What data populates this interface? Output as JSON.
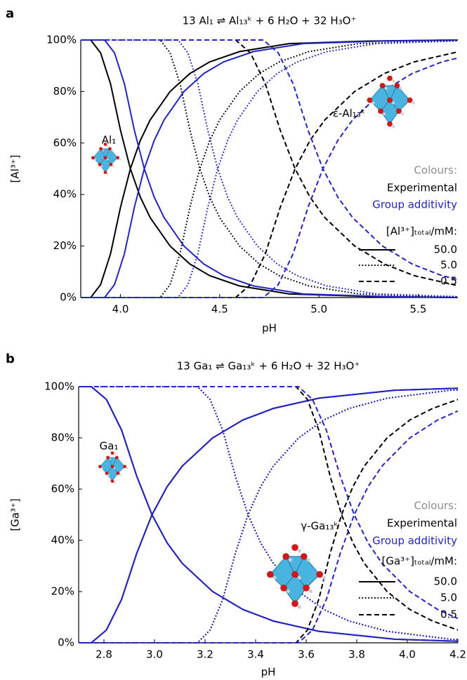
{
  "chart_data": [
    {
      "type": "line",
      "panel_label": "a",
      "title": "13 Al₁ ⇌ Al₁₃ᵏ + 6 H₂O + 32 H₃O⁺",
      "xlabel": "pH",
      "ylabel": "[Al³⁺]",
      "xlim": [
        3.8,
        5.7
      ],
      "xticks": [
        {
          "value": 4,
          "label": "4.0"
        },
        4.5,
        {
          "value": 5,
          "label": "5.0"
        },
        5.5
      ],
      "ylim": [
        0,
        100
      ],
      "yticks": [
        {
          "value": 0,
          "label": "0%"
        },
        {
          "value": 20,
          "label": "20%"
        },
        {
          "value": 40,
          "label": "40%"
        },
        {
          "value": 60,
          "label": "60%"
        },
        {
          "value": 80,
          "label": "80%"
        },
        {
          "value": 100,
          "label": "100%"
        }
      ],
      "annotations": [
        "Al₁",
        "ε-Al₁₃ᵏ"
      ],
      "legend": {
        "colours_title": "Colours:",
        "colours_title_color": "#8c8c8c",
        "colour_entries": [
          {
            "label": "Experimental",
            "color": "#000000"
          },
          {
            "label": "Group additivity",
            "color": "#2323c8"
          }
        ],
        "style_title": "[Al³⁺]ₜₒₜₐₗ/mM:",
        "style_entries": [
          {
            "label": "50.0",
            "dash": "solid"
          },
          {
            "label": "5.0",
            "dash": "dotted"
          },
          {
            "label": "0.5",
            "dash": "dashed"
          }
        ]
      },
      "series": [
        {
          "color": "#000000",
          "dash": "solid",
          "x": [
            3.8,
            3.85,
            3.9,
            3.95,
            4.0,
            4.05,
            4.1,
            4.15,
            4.25,
            4.35,
            4.45,
            4.6,
            4.85,
            5.25,
            5.7
          ],
          "values": [
            100,
            100,
            95,
            83,
            65,
            50,
            39,
            31,
            20,
            13,
            8.5,
            4.5,
            1.4,
            0.4,
            0
          ]
        },
        {
          "color": "#000000",
          "dash": "solid",
          "x": [
            3.8,
            3.85,
            3.9,
            3.95,
            4.0,
            4.05,
            4.1,
            4.15,
            4.25,
            4.35,
            4.45,
            4.6,
            4.85,
            5.25,
            5.7
          ],
          "values": [
            0,
            0,
            5,
            17,
            35,
            50,
            61,
            69,
            80,
            87,
            91.5,
            95.5,
            98.6,
            99.6,
            100
          ]
        },
        {
          "color": "#2323c8",
          "dash": "solid",
          "x": [
            3.8,
            3.92,
            3.97,
            4.02,
            4.07,
            4.12,
            4.17,
            4.22,
            4.32,
            4.42,
            4.52,
            4.67,
            4.92,
            5.32,
            5.7
          ],
          "values": [
            100,
            100,
            95,
            83,
            65,
            50,
            39,
            31,
            20,
            13,
            8.5,
            4.5,
            1.4,
            0.4,
            0
          ]
        },
        {
          "color": "#2323c8",
          "dash": "solid",
          "x": [
            3.8,
            3.92,
            3.97,
            4.02,
            4.07,
            4.12,
            4.17,
            4.22,
            4.32,
            4.42,
            4.52,
            4.67,
            4.92,
            5.32,
            5.7
          ],
          "values": [
            0,
            0,
            5,
            17,
            35,
            50,
            61,
            69,
            80,
            87,
            91.5,
            95.5,
            98.6,
            99.6,
            100
          ]
        },
        {
          "color": "#000000",
          "dash": "dotted",
          "x": [
            3.8,
            4.2,
            4.25,
            4.3,
            4.35,
            4.4,
            4.45,
            4.5,
            4.6,
            4.7,
            4.8,
            4.95,
            5.2,
            5.6,
            5.7
          ],
          "values": [
            100,
            100,
            95,
            83,
            65,
            50,
            39,
            31,
            20,
            13,
            8.5,
            4.5,
            1.4,
            0.4,
            0.3
          ]
        },
        {
          "color": "#000000",
          "dash": "dotted",
          "x": [
            3.8,
            4.2,
            4.25,
            4.3,
            4.35,
            4.4,
            4.45,
            4.5,
            4.6,
            4.7,
            4.8,
            4.95,
            5.2,
            5.6,
            5.7
          ],
          "values": [
            0,
            0,
            5,
            17,
            35,
            50,
            61,
            69,
            80,
            87,
            91.5,
            95.5,
            98.6,
            99.6,
            99.7
          ]
        },
        {
          "color": "#2323c8",
          "dash": "dotted",
          "x": [
            3.8,
            4.29,
            4.34,
            4.39,
            4.44,
            4.49,
            4.54,
            4.59,
            4.69,
            4.79,
            4.89,
            5.04,
            5.29,
            5.69
          ],
          "values": [
            100,
            100,
            95,
            83,
            65,
            50,
            39,
            31,
            20,
            13,
            8.5,
            4.5,
            1.4,
            0.4
          ]
        },
        {
          "color": "#2323c8",
          "dash": "dotted",
          "x": [
            3.8,
            4.29,
            4.34,
            4.39,
            4.44,
            4.49,
            4.54,
            4.59,
            4.69,
            4.79,
            4.89,
            5.04,
            5.29,
            5.69
          ],
          "values": [
            0,
            0,
            5,
            17,
            35,
            50,
            61,
            69,
            80,
            87,
            91.5,
            95.5,
            98.6,
            99.6
          ]
        },
        {
          "color": "#000000",
          "dash": "dashed",
          "x": [
            3.8,
            4.58,
            4.655,
            4.73,
            4.805,
            4.88,
            4.955,
            5.03,
            5.18,
            5.33,
            5.48,
            5.7
          ],
          "values": [
            100,
            100,
            95,
            83,
            65,
            50,
            39,
            31,
            20,
            13,
            8.5,
            4.6
          ]
        },
        {
          "color": "#000000",
          "dash": "dashed",
          "x": [
            3.8,
            4.58,
            4.655,
            4.73,
            4.805,
            4.88,
            4.955,
            5.03,
            5.18,
            5.33,
            5.48,
            5.7
          ],
          "values": [
            0,
            0,
            5,
            17,
            35,
            50,
            61,
            69,
            80,
            87,
            91.5,
            95.4
          ]
        },
        {
          "color": "#2323c8",
          "dash": "dashed",
          "x": [
            3.8,
            4.72,
            4.795,
            4.87,
            4.945,
            5.02,
            5.095,
            5.17,
            5.32,
            5.47,
            5.62,
            5.7
          ],
          "values": [
            100,
            100,
            95,
            83,
            65,
            50,
            39,
            31,
            20,
            13,
            8.5,
            7
          ]
        },
        {
          "color": "#2323c8",
          "dash": "dashed",
          "x": [
            3.8,
            4.72,
            4.795,
            4.87,
            4.945,
            5.02,
            5.095,
            5.17,
            5.32,
            5.47,
            5.62,
            5.7
          ],
          "values": [
            0,
            0,
            5,
            17,
            35,
            50,
            61,
            69,
            80,
            87,
            91.5,
            93
          ]
        }
      ]
    },
    {
      "type": "line",
      "panel_label": "b",
      "title": "13 Ga₁ ⇌ Ga₁₃ᵏ + 6 H₂O + 32 H₃O⁺",
      "xlabel": "pH",
      "ylabel": "[Ga³⁺]",
      "xlim": [
        2.7,
        4.2
      ],
      "xticks": [
        2.8,
        {
          "value": 3,
          "label": "3.0"
        },
        3.2,
        3.4,
        3.6,
        3.8,
        {
          "value": 4,
          "label": "4.0"
        },
        4.2
      ],
      "ylim": [
        0,
        100
      ],
      "yticks": [
        {
          "value": 0,
          "label": "0%"
        },
        {
          "value": 20,
          "label": "20%"
        },
        {
          "value": 40,
          "label": "40%"
        },
        {
          "value": 60,
          "label": "60%"
        },
        {
          "value": 80,
          "label": "80%"
        },
        {
          "value": 100,
          "label": "100%"
        }
      ],
      "annotations": [
        "Ga₁",
        "γ-Ga₁₃ᵏ"
      ],
      "legend": {
        "colours_title": "Colours:",
        "colours_title_color": "#8c8c8c",
        "colour_entries": [
          {
            "label": "Experimental",
            "color": "#000000"
          },
          {
            "label": "Group additivity",
            "color": "#2323c8"
          }
        ],
        "style_title": "[Ga³⁺]ₜₒₜₐₗ/mM:",
        "style_entries": [
          {
            "label": "50.0",
            "dash": "solid"
          },
          {
            "label": "5.0",
            "dash": "dotted"
          },
          {
            "label": "0.5",
            "dash": "dashed"
          }
        ]
      },
      "series": [
        {
          "color": "#000000",
          "dash": "solid",
          "x": [
            2.7,
            2.75,
            2.81,
            2.87,
            2.93,
            2.99,
            3.05,
            3.11,
            3.23,
            3.35,
            3.47,
            3.65,
            3.95,
            4.2
          ],
          "values": [
            100,
            100,
            95,
            83,
            65,
            50,
            39,
            31,
            20,
            13,
            8.5,
            4.5,
            1.4,
            0.6
          ]
        },
        {
          "color": "#000000",
          "dash": "solid",
          "x": [
            2.7,
            2.75,
            2.81,
            2.87,
            2.93,
            2.99,
            3.05,
            3.11,
            3.23,
            3.35,
            3.47,
            3.65,
            3.95,
            4.2
          ],
          "values": [
            0,
            0,
            5,
            17,
            35,
            50,
            61,
            69,
            80,
            87,
            91.5,
            95.5,
            98.6,
            99.4
          ]
        },
        {
          "color": "#2323c8",
          "dash": "solid",
          "x": [
            2.7,
            2.75,
            2.81,
            2.87,
            2.93,
            2.99,
            3.05,
            3.11,
            3.23,
            3.35,
            3.47,
            3.65,
            3.95,
            4.2
          ],
          "values": [
            100,
            100,
            95,
            83,
            65,
            50,
            39,
            31,
            20,
            13,
            8.5,
            4.5,
            1.4,
            0.6
          ]
        },
        {
          "color": "#2323c8",
          "dash": "solid",
          "x": [
            2.7,
            2.75,
            2.81,
            2.87,
            2.93,
            2.99,
            3.05,
            3.11,
            3.23,
            3.35,
            3.47,
            3.65,
            3.95,
            4.2
          ],
          "values": [
            0,
            0,
            5,
            17,
            35,
            50,
            61,
            69,
            80,
            87,
            91.5,
            95.5,
            98.6,
            99.4
          ]
        },
        {
          "color": "#000000",
          "dash": "dotted",
          "x": [
            2.7,
            3.17,
            3.22,
            3.27,
            3.32,
            3.37,
            3.42,
            3.47,
            3.57,
            3.67,
            3.77,
            3.92,
            4.17,
            4.2
          ],
          "values": [
            100,
            100,
            95,
            83,
            65,
            50,
            39,
            31,
            20,
            13,
            8.5,
            4.5,
            1.4,
            1.3
          ]
        },
        {
          "color": "#000000",
          "dash": "dotted",
          "x": [
            2.7,
            3.17,
            3.22,
            3.27,
            3.32,
            3.37,
            3.42,
            3.47,
            3.57,
            3.67,
            3.77,
            3.92,
            4.17,
            4.2
          ],
          "values": [
            0,
            0,
            5,
            17,
            35,
            50,
            61,
            69,
            80,
            87,
            91.5,
            95.5,
            98.6,
            98.7
          ]
        },
        {
          "color": "#2323c8",
          "dash": "dotted",
          "x": [
            2.7,
            3.17,
            3.22,
            3.27,
            3.32,
            3.37,
            3.42,
            3.47,
            3.57,
            3.67,
            3.77,
            3.92,
            4.17,
            4.2
          ],
          "values": [
            100,
            100,
            95,
            83,
            65,
            50,
            39,
            31,
            20,
            13,
            8.5,
            4.5,
            1.4,
            1.3
          ]
        },
        {
          "color": "#2323c8",
          "dash": "dotted",
          "x": [
            2.7,
            3.17,
            3.22,
            3.27,
            3.32,
            3.37,
            3.42,
            3.47,
            3.57,
            3.67,
            3.77,
            3.92,
            4.17,
            4.2
          ],
          "values": [
            0,
            0,
            5,
            17,
            35,
            50,
            61,
            69,
            80,
            87,
            91.5,
            95.5,
            98.6,
            98.7
          ]
        },
        {
          "color": "#000000",
          "dash": "dashed",
          "x": [
            2.7,
            3.56,
            3.605,
            3.65,
            3.695,
            3.74,
            3.785,
            3.83,
            3.92,
            4.01,
            4.1,
            4.2
          ],
          "values": [
            100,
            100,
            95,
            83,
            65,
            50,
            39,
            31,
            20,
            13,
            8.5,
            5
          ]
        },
        {
          "color": "#000000",
          "dash": "dashed",
          "x": [
            2.7,
            3.56,
            3.605,
            3.65,
            3.695,
            3.74,
            3.785,
            3.83,
            3.92,
            4.01,
            4.1,
            4.2
          ],
          "values": [
            0,
            0,
            5,
            17,
            35,
            50,
            61,
            69,
            80,
            87,
            91.5,
            95
          ]
        },
        {
          "color": "#2323c8",
          "dash": "dashed",
          "x": [
            2.7,
            3.57,
            3.625,
            3.68,
            3.735,
            3.79,
            3.845,
            3.9,
            4.01,
            4.12,
            4.2
          ],
          "values": [
            100,
            100,
            95,
            83,
            65,
            50,
            39,
            31,
            20,
            13,
            9.5
          ]
        },
        {
          "color": "#2323c8",
          "dash": "dashed",
          "x": [
            2.7,
            3.57,
            3.625,
            3.68,
            3.735,
            3.79,
            3.845,
            3.9,
            4.01,
            4.12,
            4.2
          ],
          "values": [
            0,
            0,
            5,
            17,
            35,
            50,
            61,
            69,
            80,
            87,
            90.5
          ]
        }
      ]
    }
  ]
}
